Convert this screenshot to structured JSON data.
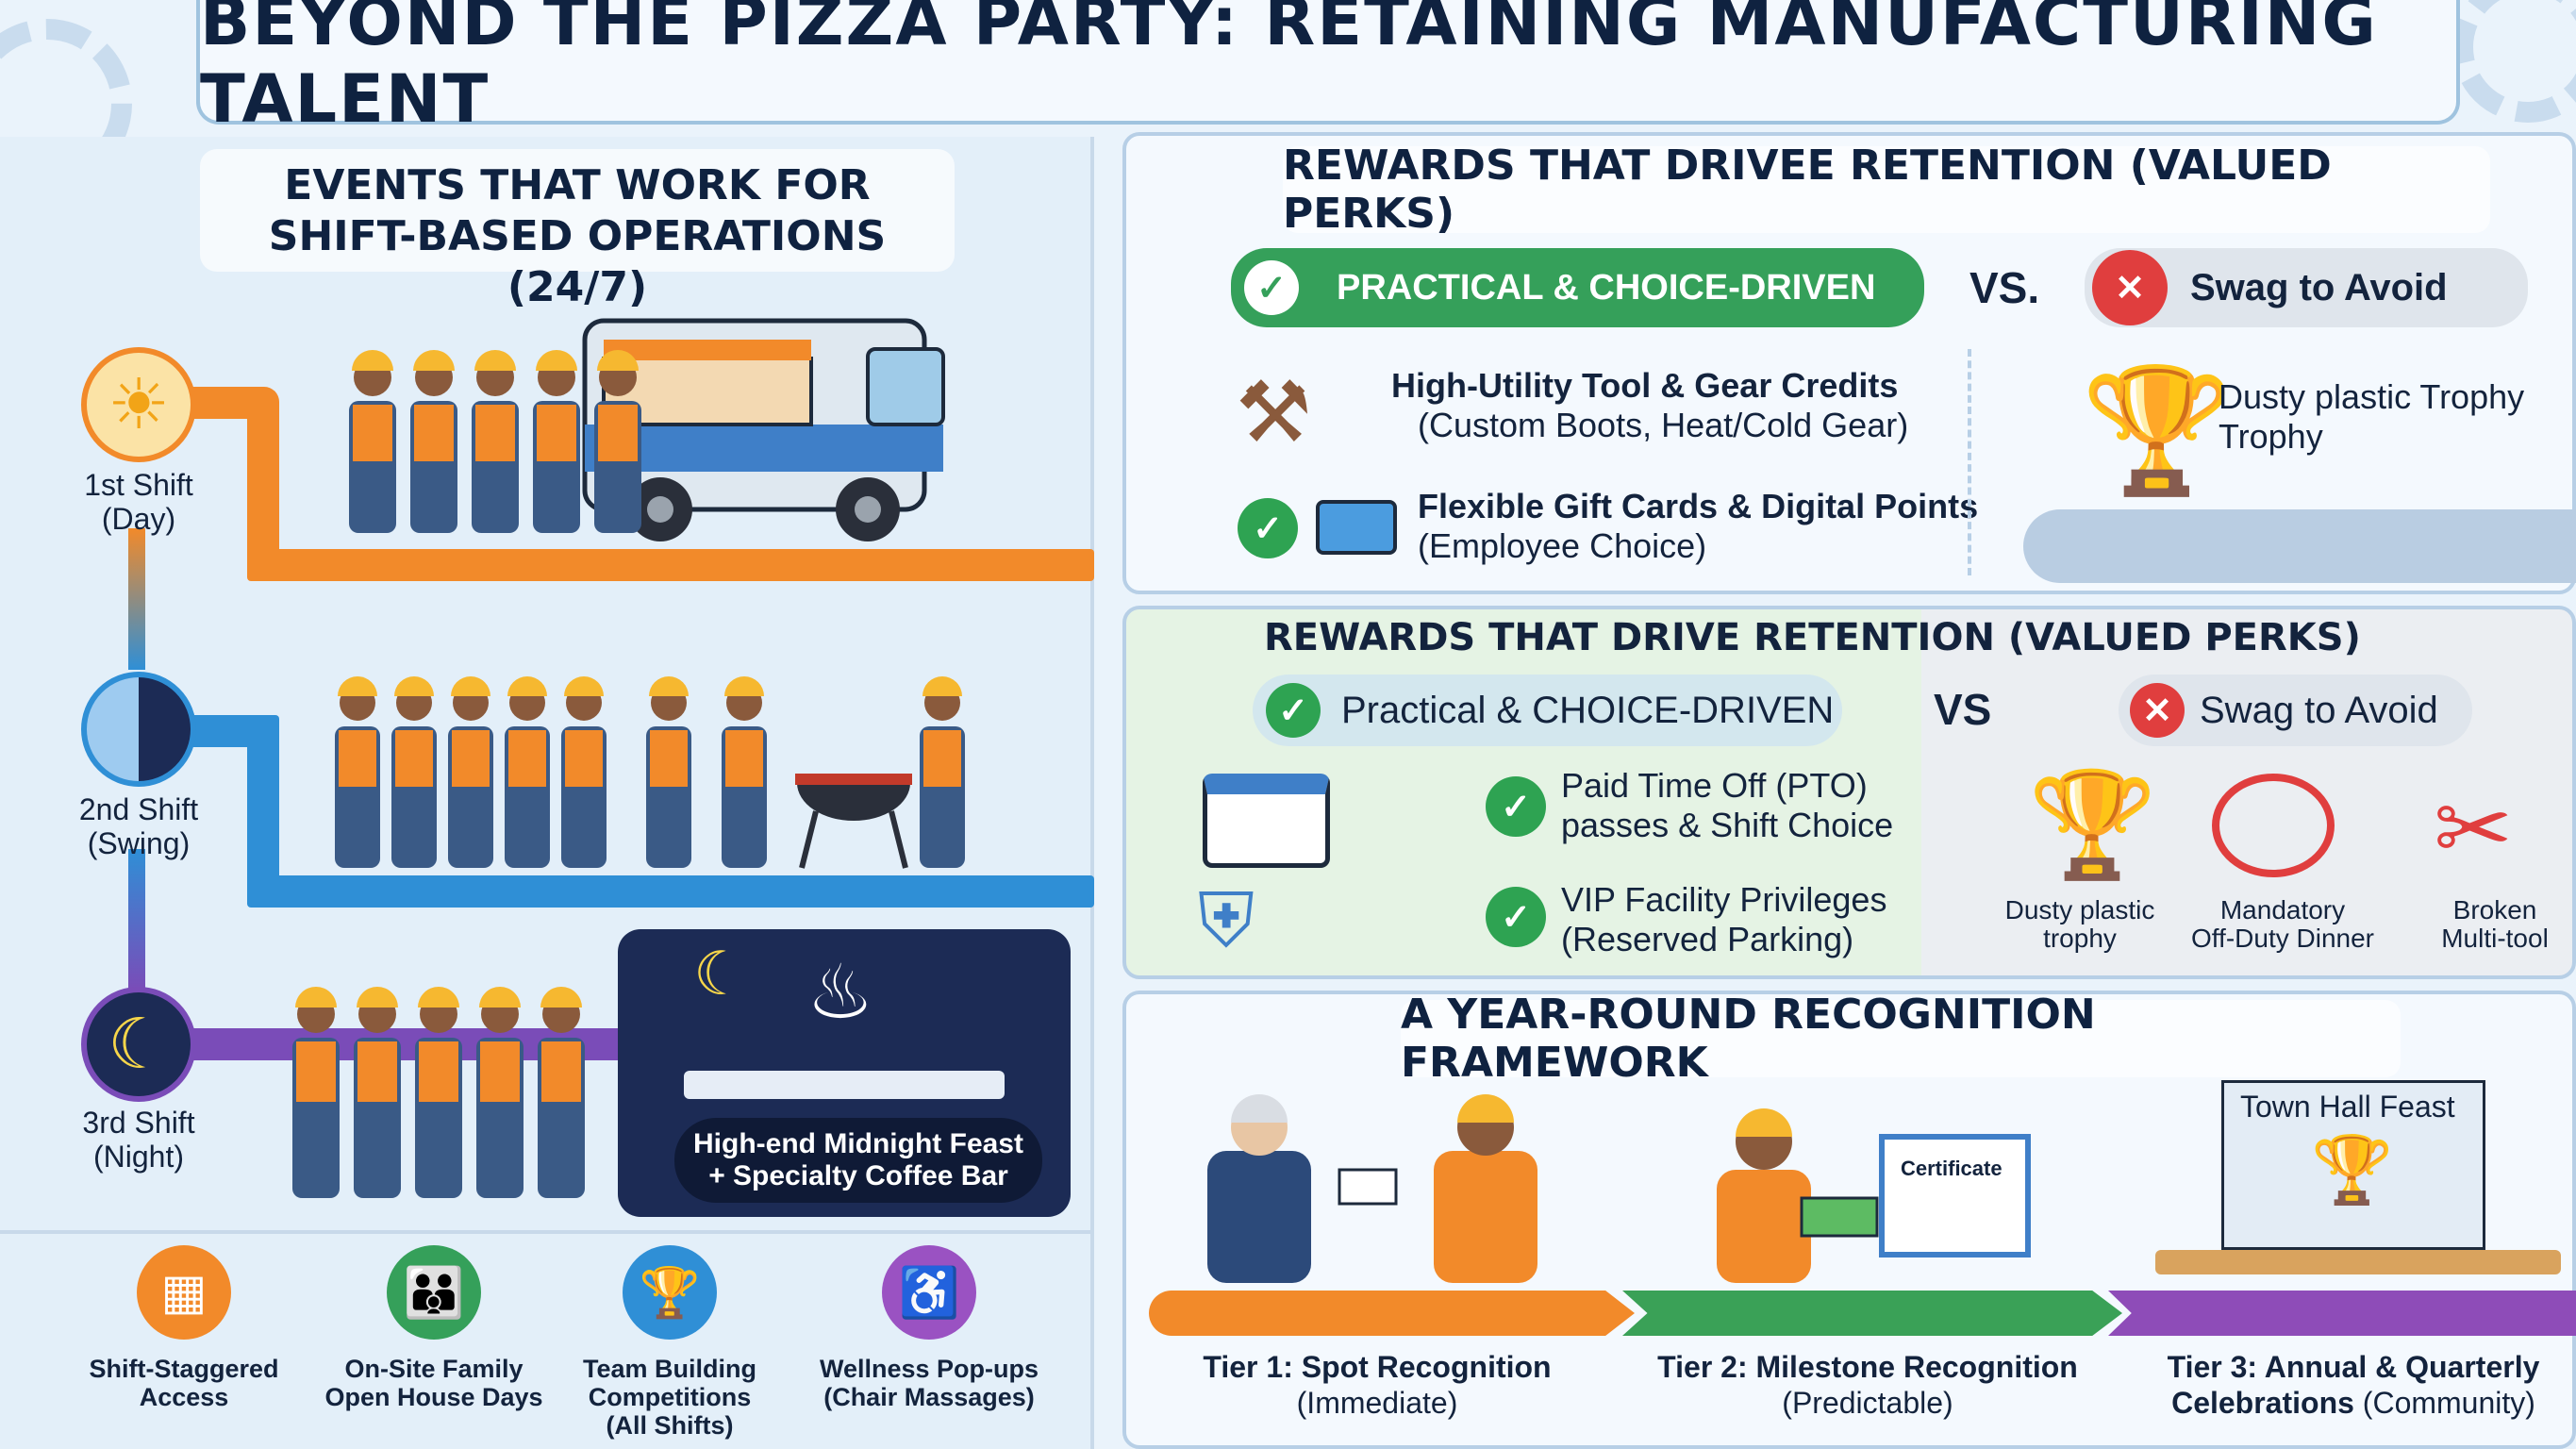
{
  "title": "BEYOND THE PIZZA PARTY: RETAINING MANUFACTURING TALENT",
  "events": {
    "title_line1": "EVENTS THAT WORK FOR",
    "title_line2": "SHIFT-BASED OPERATIONS (24/7)",
    "shifts": [
      {
        "name": "1st Shift",
        "sub": "(Day)"
      },
      {
        "name": "2nd Shift",
        "sub": "(Swing)"
      },
      {
        "name": "3rd Shift",
        "sub": "(Night)"
      }
    ],
    "night_caption_line1": "High-end Midnight Feast",
    "night_caption_line2": "+ Specialty Coffee Bar",
    "bottom_items": [
      {
        "line1": "Shift-Staggered",
        "line2": "Access",
        "line3": "",
        "color": "#f28a2a",
        "icon": "calendar-clock-icon"
      },
      {
        "line1": "On-Site Family",
        "line2": "Open House Days",
        "line3": "",
        "color": "#35a05a",
        "icon": "family-icon"
      },
      {
        "line1": "Team Building",
        "line2": "Competitions",
        "line3": "(All Shifts)",
        "color": "#2f8fd6",
        "icon": "trophy-icon"
      },
      {
        "line1": "Wellness Pop-ups",
        "line2": "(Chair Massages)",
        "line3": "",
        "color": "#9a52c2",
        "icon": "massage-icon"
      }
    ]
  },
  "rewards_top": {
    "title": "REWARDS THAT DRIVEE RETENTION (VALUED PERKS)",
    "choice_label": "PRACTICAL & CHOICE-DRIVEN",
    "vs": "VS.",
    "avoid_label": "Swag to Avoid",
    "perks": [
      {
        "line1": "High-Utility Tool & Gear Credits",
        "line2": "(Custom Boots, Heat/Cold Gear)"
      },
      {
        "line1": "Flexible Gift Cards & Digital Points",
        "line2": "(Employee Choice)"
      }
    ],
    "avoid_item_line1": "Dusty plastic Trophy",
    "avoid_item_line2": "Trophy"
  },
  "rewards_mid": {
    "title": "REWARDS THAT DRIVE RETENTION (VALUED PERKS)",
    "choice_label": "Practical & CHOICE-DRIVEN",
    "vs": "VS",
    "avoid_label": "Swag to Avoid",
    "perks": [
      {
        "line1": "Paid Time Off (PTO)",
        "line2": "passes & Shift Choice"
      },
      {
        "line1": "VIP Facility Privileges",
        "line2": "(Reserved Parking)"
      }
    ],
    "avoid_items": [
      {
        "line1": "Dusty plastic",
        "line2": "trophy"
      },
      {
        "line1": "Mandatory",
        "line2": "Off-Duty Dinner"
      },
      {
        "line1": "Broken",
        "line2": "Multi-tool"
      }
    ]
  },
  "recognition": {
    "title": "A YEAR-ROUND RECOGNITION FRAMEWORK",
    "certificate": "Certificate",
    "town_hall": "Town Hall Feast",
    "tiers": [
      {
        "name": "Tier 1: Spot Recognition",
        "sub": "(Immediate)",
        "color": "#f28a2a"
      },
      {
        "name": "Tier 2: Milestone Recognition",
        "sub": "(Predictable)",
        "color": "#3aa157"
      },
      {
        "name": "Tier 3: Annual & Quarterly",
        "name2": "Celebrations",
        "sub": "(Community)",
        "color": "#8e4cb8"
      }
    ]
  }
}
